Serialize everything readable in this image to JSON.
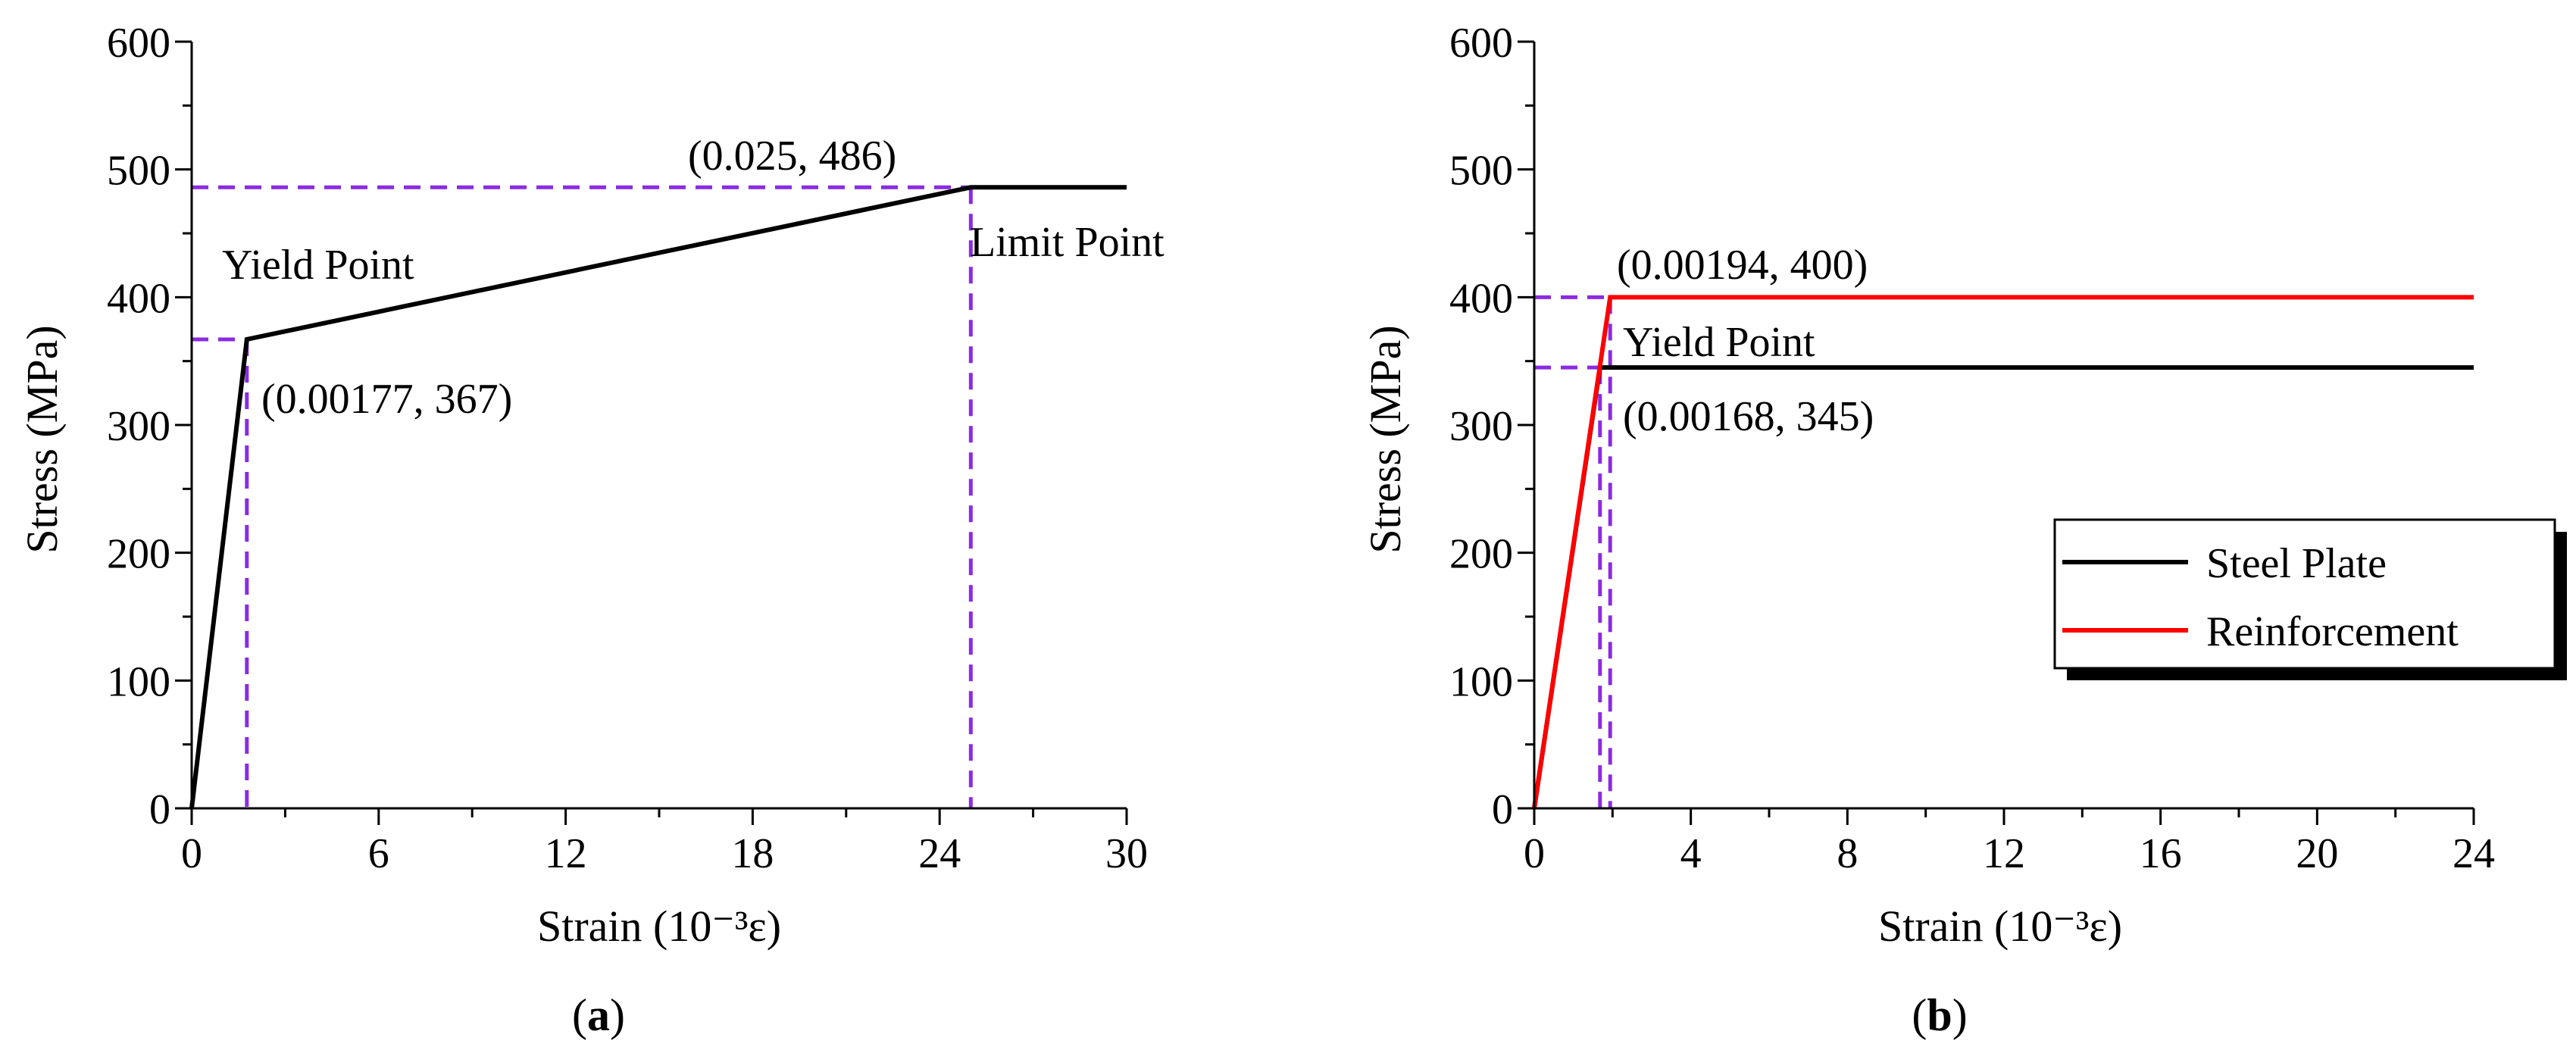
{
  "colors": {
    "steel": "#000000",
    "reinforcement": "#ff0000",
    "guide": "#8b2be2"
  },
  "chart_data": [
    {
      "panel": "(a)",
      "panel_letter": "a",
      "type": "line",
      "xlabel": "Strain (10⁻³ε)",
      "ylabel": "Stress (MPa)",
      "xlim": [
        0,
        30
      ],
      "ylim": [
        0,
        600
      ],
      "xticks": [
        0,
        6,
        12,
        18,
        24,
        30
      ],
      "yticks": [
        0,
        100,
        200,
        300,
        400,
        500,
        600
      ],
      "series": [
        {
          "color": "#000000",
          "x": [
            0,
            1.77,
            25,
            30
          ],
          "y": [
            0,
            367,
            486,
            486
          ]
        }
      ],
      "guides": [
        {
          "x": 1.77,
          "y": 367
        },
        {
          "x": 25,
          "y": 486
        }
      ],
      "annotations": [
        {
          "text": "(0.025, 486)"
        },
        {
          "text": "Limit Point"
        },
        {
          "text": "Yield Point"
        },
        {
          "text": "(0.00177, 367)"
        }
      ],
      "grid": false
    },
    {
      "panel": "(b)",
      "panel_letter": "b",
      "type": "line",
      "xlabel": "Strain (10⁻³ε)",
      "ylabel": "Stress (MPa)",
      "xlim": [
        0,
        24
      ],
      "ylim": [
        0,
        600
      ],
      "xticks": [
        0,
        4,
        8,
        12,
        16,
        20,
        24
      ],
      "yticks": [
        0,
        100,
        200,
        300,
        400,
        500,
        600
      ],
      "series": [
        {
          "name": "Steel Plate",
          "color": "#000000",
          "x": [
            0,
            1.68,
            24
          ],
          "y": [
            0,
            345,
            345
          ]
        },
        {
          "name": "Reinforcement",
          "color": "#ff0000",
          "x": [
            0,
            1.94,
            24
          ],
          "y": [
            0,
            400,
            400
          ]
        }
      ],
      "guides": [
        {
          "x": 1.68,
          "y": 345
        },
        {
          "x": 1.94,
          "y": 400
        }
      ],
      "annotations": [
        {
          "text": "(0.00194, 400)"
        },
        {
          "text": "Yield Point"
        },
        {
          "text": "(0.00168, 345)"
        }
      ],
      "legend": "right",
      "grid": false
    }
  ]
}
